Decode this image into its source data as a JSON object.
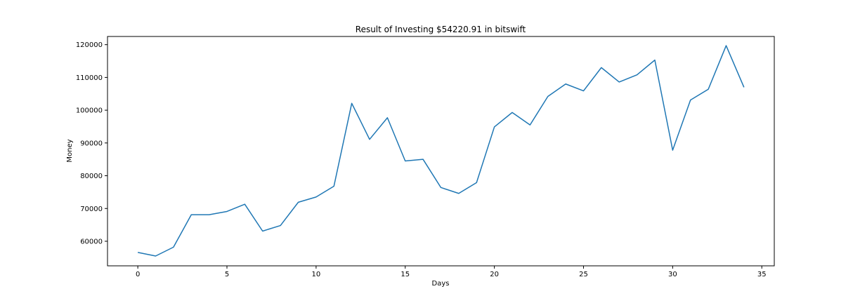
{
  "chart_data": {
    "type": "line",
    "title": "Result of Investing $54220.91 in bitswift",
    "xlabel": "Days",
    "ylabel": "Money",
    "xlim": [
      -1.7,
      35.7
    ],
    "ylim": [
      52500,
      122500
    ],
    "xticks": [
      0,
      5,
      10,
      15,
      20,
      25,
      30,
      35
    ],
    "yticks": [
      60000,
      70000,
      80000,
      90000,
      100000,
      110000,
      120000
    ],
    "grid": false,
    "series": [
      {
        "color": "#1f77b4",
        "x": [
          0,
          1,
          2,
          3,
          4,
          5,
          6,
          7,
          8,
          9,
          10,
          11,
          12,
          13,
          14,
          15,
          16,
          17,
          18,
          19,
          20,
          21,
          22,
          23,
          24,
          25,
          26,
          27,
          28,
          29,
          30,
          31,
          32,
          33,
          34
        ],
        "y": [
          56600,
          55500,
          58200,
          68100,
          68100,
          69100,
          71300,
          63100,
          64800,
          71900,
          73500,
          76800,
          102100,
          91100,
          97700,
          84500,
          85000,
          76400,
          74600,
          77900,
          94900,
          99300,
          95500,
          104200,
          108000,
          105900,
          113000,
          108600,
          110800,
          115300,
          87800,
          103100,
          106400,
          119700,
          107000
        ]
      }
    ]
  }
}
